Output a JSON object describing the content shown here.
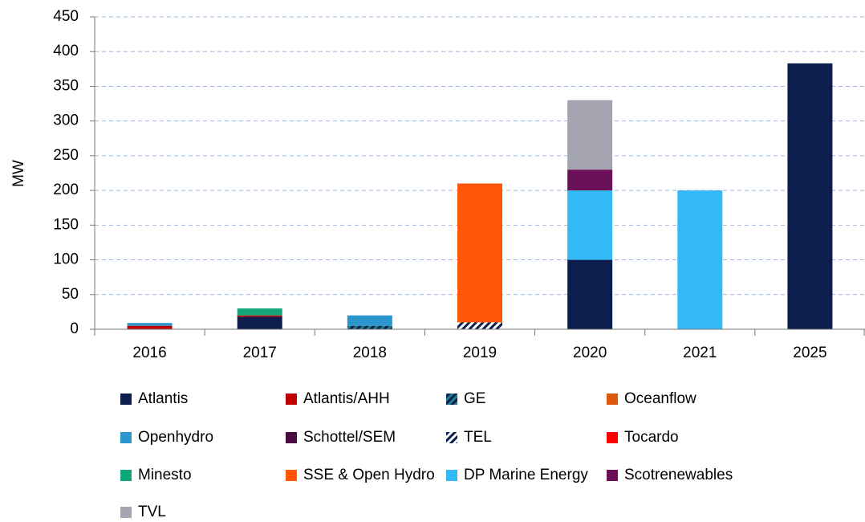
{
  "chart_data": {
    "type": "stacked_bar",
    "y_label": "MW",
    "categories": [
      "2016",
      "2017",
      "2018",
      "2019",
      "2020",
      "2021",
      "2025"
    ],
    "ylim": [
      0,
      450
    ],
    "yticks": [
      0,
      50,
      100,
      150,
      200,
      250,
      300,
      350,
      400,
      450
    ],
    "grid": true,
    "legend": "bottom",
    "series": [
      {
        "name": "Atlantis",
        "color": "#0b1e4e",
        "values": [
          null,
          18,
          null,
          null,
          100,
          null,
          383
        ]
      },
      {
        "name": "Atlantis/AHH",
        "color": "#c00000",
        "values": [
          5,
          2,
          null,
          null,
          null,
          null,
          null
        ]
      },
      {
        "name": "GE",
        "color": "#1f7f8c",
        "hatch_background": "#0b1e4e",
        "values": [
          null,
          null,
          5,
          null,
          null,
          null,
          null
        ]
      },
      {
        "name": "Oceanflow",
        "color": "#e0560e",
        "values": [
          null,
          null,
          null,
          null,
          null,
          null,
          null
        ]
      },
      {
        "name": "Openhydro",
        "color": "#2b96cc",
        "values": [
          4,
          null,
          15,
          null,
          null,
          null,
          null
        ]
      },
      {
        "name": "Schottel/SEM",
        "color": "#4a0b40",
        "values": [
          null,
          null,
          null,
          null,
          null,
          null,
          null
        ]
      },
      {
        "name": "TEL",
        "color": "#0b1e4e",
        "hatch_background": "#ffffff",
        "values": [
          null,
          null,
          null,
          10,
          null,
          null,
          null
        ]
      },
      {
        "name": "Tocardo",
        "color": "#ff0000",
        "values": [
          null,
          null,
          null,
          null,
          null,
          null,
          null
        ]
      },
      {
        "name": "Minesto",
        "color": "#13a57a",
        "values": [
          null,
          10,
          null,
          null,
          null,
          null,
          null
        ]
      },
      {
        "name": "SSE & Open Hydro",
        "color": "#ff560a",
        "values": [
          null,
          null,
          null,
          200,
          null,
          null,
          null
        ]
      },
      {
        "name": "DP Marine Energy",
        "color": "#33b9f5",
        "values": [
          null,
          null,
          null,
          null,
          100,
          200,
          null
        ]
      },
      {
        "name": "Scotrenewables",
        "color": "#6a0f58",
        "values": [
          null,
          null,
          null,
          null,
          30,
          null,
          null
        ]
      },
      {
        "name": "TVL",
        "color": "#a5a5b1",
        "values": [
          null,
          null,
          null,
          null,
          100,
          null,
          null
        ]
      }
    ]
  }
}
